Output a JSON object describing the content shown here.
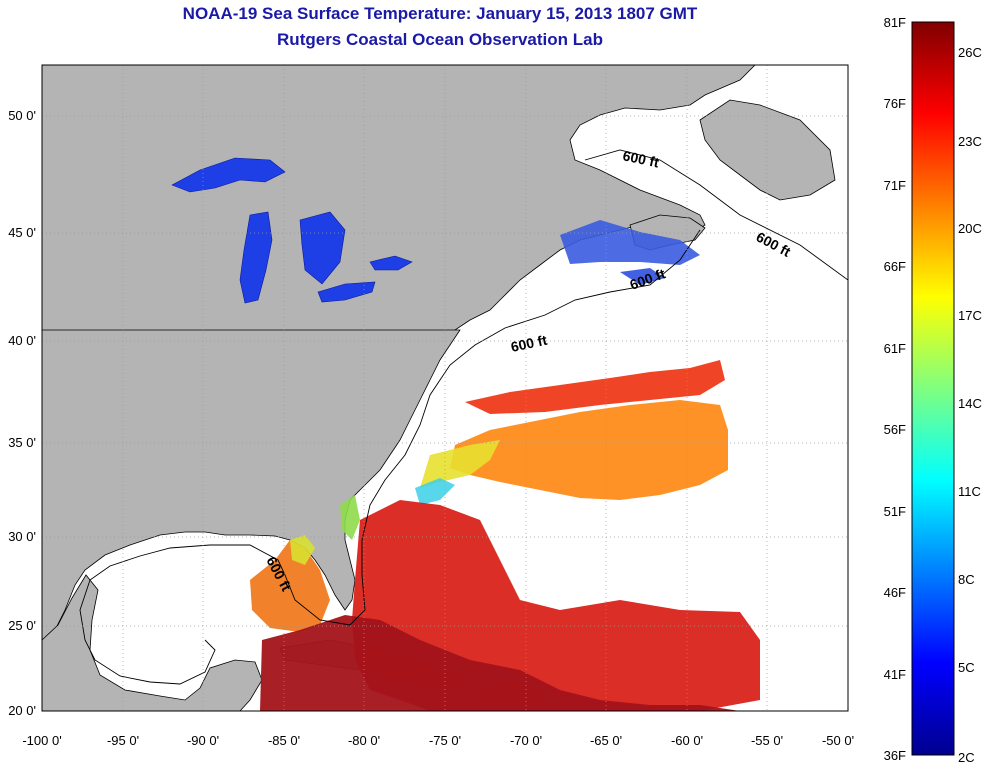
{
  "title": {
    "line1": "NOAA-19 Sea Surface Temperature:  January 15, 2013 1807 GMT",
    "line2": "Rutgers Coastal Ocean Observation Lab"
  },
  "map": {
    "lon_labels": [
      "-100 0'",
      "-95 0'",
      "-90 0'",
      "-85 0'",
      "-80 0'",
      "-75 0'",
      "-70 0'",
      "-65 0'",
      "-60 0'",
      "-55 0'",
      "-50 0'"
    ],
    "lon_values": [
      -100,
      -95,
      -90,
      -85,
      -80,
      -75,
      -70,
      -65,
      -60,
      -55,
      -50
    ],
    "lat_labels": [
      "20 0'",
      "25 0'",
      "30 0'",
      "35 0'",
      "40 0'",
      "45 0'",
      "50 0'"
    ],
    "lat_values": [
      20,
      25,
      30,
      35,
      40,
      45,
      50
    ],
    "lon_range": [
      -100,
      -50
    ],
    "lat_range": [
      20,
      52.5
    ],
    "depth_contour_label": "600 ft",
    "colors": {
      "land": "#b4b4b4",
      "ocean": "#ffffff",
      "grid": "#888888"
    }
  },
  "colorbar": {
    "f_labels": [
      "81F",
      "76F",
      "71F",
      "66F",
      "61F",
      "56F",
      "51F",
      "46F",
      "41F",
      "36F"
    ],
    "c_labels": [
      "26C",
      "23C",
      "20C",
      "17C",
      "14C",
      "11C",
      "8C",
      "5C",
      "2C"
    ],
    "range_f": [
      36,
      81
    ],
    "colormap": "jet"
  }
}
